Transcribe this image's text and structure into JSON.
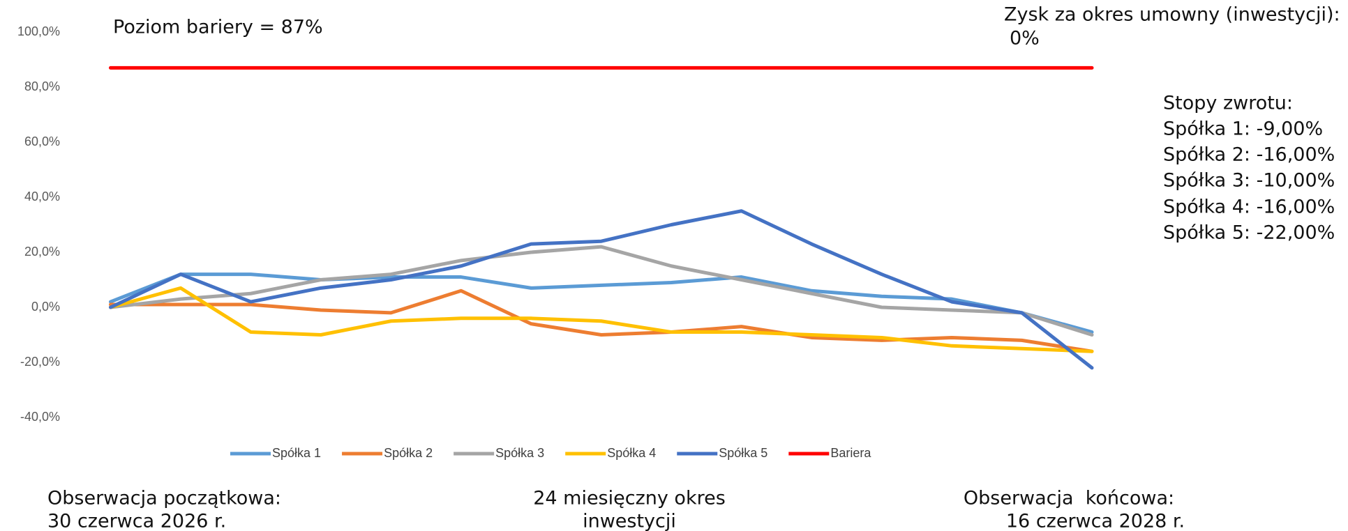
{
  "chart_data": {
    "type": "line",
    "categories": [
      null,
      null,
      null,
      null,
      null,
      null,
      null,
      null,
      null,
      null,
      null,
      null,
      null,
      null,
      null
    ],
    "series": [
      {
        "name": "Spółka 1",
        "color": "#5b9bd5",
        "values": [
          2,
          12,
          12,
          10,
          11,
          11,
          7,
          8,
          9,
          11,
          6,
          4,
          3,
          -2,
          -9
        ]
      },
      {
        "name": "Spółka 2",
        "color": "#ed7d31",
        "values": [
          1,
          1,
          1,
          -1,
          -2,
          6,
          -6,
          -10,
          -9,
          -7,
          -11,
          -12,
          -11,
          -12,
          -16
        ]
      },
      {
        "name": "Spółka 3",
        "color": "#a5a5a5",
        "values": [
          0,
          3,
          5,
          10,
          12,
          17,
          20,
          22,
          15,
          10,
          5,
          0,
          -1,
          -2,
          -10
        ]
      },
      {
        "name": "Spółka 4",
        "color": "#ffc000",
        "values": [
          0,
          7,
          -9,
          -10,
          -5,
          -4,
          -4,
          -5,
          -9,
          -9,
          -10,
          -11,
          -14,
          -15,
          -16
        ]
      },
      {
        "name": "Spółka 5",
        "color": "#4472c4",
        "values": [
          0,
          12,
          2,
          7,
          10,
          15,
          23,
          24,
          30,
          35,
          23,
          12,
          2,
          -2,
          -22
        ]
      },
      {
        "name": "Bariera",
        "color": "#ff0000",
        "values": [
          87,
          87,
          87,
          87,
          87,
          87,
          87,
          87,
          87,
          87,
          87,
          87,
          87,
          87,
          87
        ]
      }
    ],
    "ylim": [
      -40,
      100
    ],
    "yticks": [
      {
        "value": -40,
        "label": "-40,0%"
      },
      {
        "value": -20,
        "label": "-20,0%"
      },
      {
        "value": 0,
        "label": "0,0%"
      },
      {
        "value": 20,
        "label": "20,0%"
      },
      {
        "value": 40,
        "label": "40,0%"
      },
      {
        "value": 60,
        "label": "60,0%"
      },
      {
        "value": 80,
        "label": "80,0%"
      },
      {
        "value": 100,
        "label": "100,0%"
      }
    ],
    "grid": false,
    "legend": "bottom",
    "annotations": {
      "barrier": "Poziom bariery = 87%",
      "profit": [
        "Zysk za okres umowny (inwestycji):",
        "0%"
      ],
      "returns": [
        "Stopy zwrotu:",
        "Spółka 1: -9,00%",
        "Spółka 2: -16,00%",
        "Spółka 3: -10,00%",
        "Spółka 4: -16,00%",
        "Spółka 5: -22,00%"
      ],
      "start": [
        "Obserwacja początkowa:",
        "30 czerwca 2026 r."
      ],
      "period": [
        "24 miesięczny okres",
        "inwestycji"
      ],
      "end": [
        "Obserwacja  końcowa:",
        "16 czerwca 2028 r."
      ]
    }
  }
}
